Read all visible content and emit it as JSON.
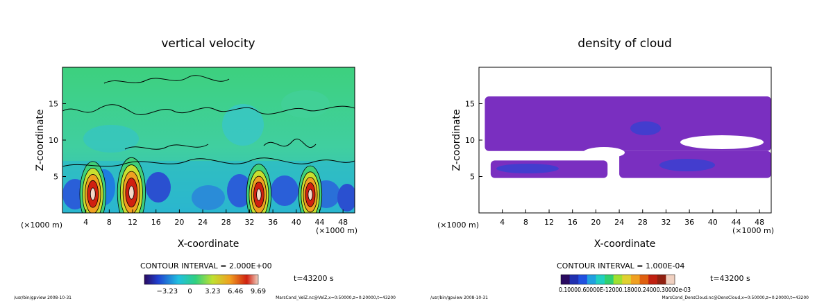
{
  "colors": {
    "velocity_background": "#3fd07a",
    "cloud_violet": "#7a2fc0",
    "cloud_blue": "#3a3fd0"
  },
  "chart_data": [
    {
      "type": "heatmap",
      "title": "vertical velocity",
      "xlabel": "X-coordinate",
      "ylabel": "Z-coordinate",
      "xunit": "(×1000 m)",
      "xticks": [
        4,
        8,
        12,
        16,
        20,
        24,
        28,
        32,
        36,
        40,
        44,
        48
      ],
      "yticks": [
        5,
        10,
        15
      ],
      "xlim": [
        0,
        50
      ],
      "ylim": [
        0,
        20
      ],
      "contour_interval_text": "CONTOUR INTERVAL = 2.000E+00",
      "time_text": "t=43200 s",
      "colorbar_labels": [
        "−3.23",
        "0",
        "3.23",
        "6.46",
        "9.69"
      ],
      "colorbar_range": [
        -6.46,
        9.69
      ],
      "updraft_cores": [
        {
          "x": 5.2,
          "z": 2.6,
          "max": 9.0
        },
        {
          "x": 11.8,
          "z": 2.8,
          "max": 9.69
        },
        {
          "x": 33.6,
          "z": 2.5,
          "max": 8.5
        },
        {
          "x": 42.4,
          "z": 2.5,
          "max": 8.0
        }
      ],
      "footer_left": "/usr/bin/gpview  2008-10-31",
      "footer_right": "MarsCond_VelZ.nc@VelZ,x=0:50000,z=0:20000,t=43200"
    },
    {
      "type": "heatmap",
      "title": "density of cloud",
      "xlabel": "X-coordinate",
      "ylabel": "Z-coordinate",
      "xunit": "(×1000 m)",
      "xticks": [
        4,
        8,
        12,
        16,
        20,
        24,
        28,
        32,
        36,
        40,
        44,
        48
      ],
      "yticks": [
        5,
        10,
        15
      ],
      "xlim": [
        0,
        50
      ],
      "ylim": [
        0,
        20
      ],
      "contour_interval_text": "CONTOUR INTERVAL = 1.000E-04",
      "time_text": "t=43200 s",
      "colorbar_labels_text": "0.10000.60000E-12000.18000.24000.30000e-03",
      "cloud_layers": [
        {
          "x": [
            1,
            50
          ],
          "z": [
            8.5,
            16
          ],
          "level": "low"
        },
        {
          "x": [
            2,
            22
          ],
          "z": [
            4.8,
            7.2
          ],
          "level": "low"
        },
        {
          "x": [
            24,
            50
          ],
          "z": [
            4.8,
            8.5
          ],
          "level": "low"
        }
      ],
      "footer_left": "/usr/bin/gpview  2008-10-31",
      "footer_right": "MarsCond_DensCloud.nc@DensCloud,x=0:50000,z=0:20000,t=43200"
    }
  ]
}
